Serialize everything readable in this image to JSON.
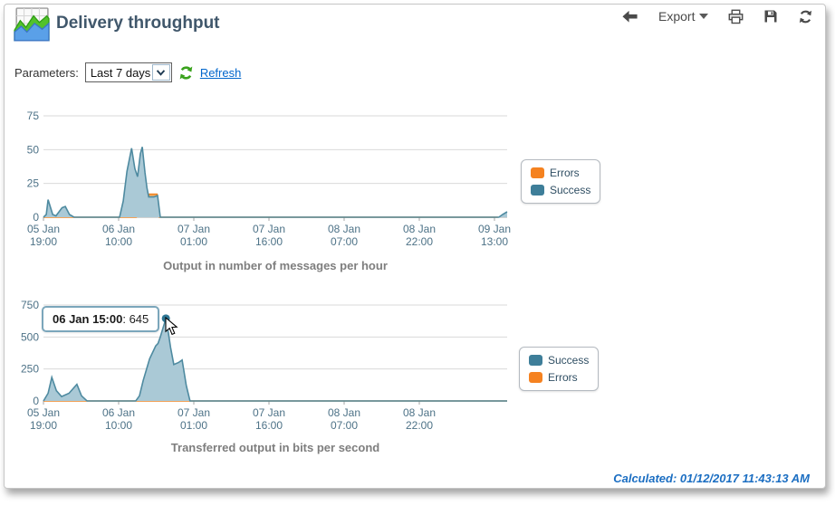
{
  "header": {
    "title": "Delivery throughput"
  },
  "toolbar": {
    "export_label": "Export"
  },
  "parameters": {
    "label": "Parameters:",
    "range_value": "Last 7 days",
    "refresh_label": "Refresh"
  },
  "tooltip": {
    "time": "06 Jan 15:00",
    "suffix": ": 645"
  },
  "footer": {
    "calculated": "Calculated: 01/12/2017 11:43:13 AM"
  },
  "colors": {
    "success": "#3e7e99",
    "success_stroke": "#4e8aa0",
    "success_fill": "#aac9d6",
    "errors": "#f58220",
    "errors_fill": "#f6b26b",
    "grid": "#d9d9d9",
    "axis": "#a6a6a6",
    "tick_text": "#4d7287",
    "marker": "#2e7693",
    "link": "#0066cc",
    "title_text": "#40576b",
    "footer_text": "#1b6ec2"
  },
  "chart_data": [
    {
      "type": "area",
      "title": "Output in number of messages per hour",
      "ylabel": "messages per hour",
      "ylim": [
        0,
        75
      ],
      "y_ticks": [
        0,
        25,
        50,
        75
      ],
      "x_ticks": [
        {
          "date": "05 Jan",
          "time": "19:00"
        },
        {
          "date": "06 Jan",
          "time": "10:00"
        },
        {
          "date": "07 Jan",
          "time": "01:00"
        },
        {
          "date": "07 Jan",
          "time": "16:00"
        },
        {
          "date": "08 Jan",
          "time": "07:00"
        },
        {
          "date": "08 Jan",
          "time": "22:00"
        },
        {
          "date": "09 Jan",
          "time": "13:00"
        }
      ],
      "legend": [
        {
          "label": "Errors",
          "color": "#f58220"
        },
        {
          "label": "Success",
          "color": "#3e7e99"
        }
      ],
      "series": [
        {
          "name": "Errors",
          "stroke": "#ef8320",
          "fill": "#f6b26b",
          "points": [
            [
              0.0,
              0
            ],
            [
              0.2,
              0
            ],
            [
              0.213,
              3
            ],
            [
              0.221,
              10
            ],
            [
              0.228,
              17
            ],
            [
              0.245,
              17
            ],
            [
              0.25,
              0
            ],
            [
              0.98,
              0
            ]
          ]
        },
        {
          "name": "Success",
          "stroke": "#4e8aa0",
          "fill": "#aac9d6",
          "points": [
            [
              0.0,
              0
            ],
            [
              0.006,
              2
            ],
            [
              0.01,
              13
            ],
            [
              0.02,
              2
            ],
            [
              0.027,
              1
            ],
            [
              0.04,
              7
            ],
            [
              0.047,
              8
            ],
            [
              0.056,
              2
            ],
            [
              0.066,
              0
            ],
            [
              0.164,
              0
            ],
            [
              0.172,
              12
            ],
            [
              0.18,
              34
            ],
            [
              0.19,
              51
            ],
            [
              0.197,
              36
            ],
            [
              0.203,
              30
            ],
            [
              0.209,
              47
            ],
            [
              0.213,
              52
            ],
            [
              0.219,
              33
            ],
            [
              0.223,
              22
            ],
            [
              0.227,
              15
            ],
            [
              0.238,
              15
            ],
            [
              0.246,
              16
            ],
            [
              0.252,
              0
            ],
            [
              0.982,
              0
            ],
            [
              0.99,
              2
            ],
            [
              1.0,
              4
            ]
          ]
        }
      ],
      "grid": true,
      "legend_position": "right"
    },
    {
      "type": "area",
      "title": "Transferred output in bits per second",
      "ylabel": "bits per second",
      "ylim": [
        0,
        750
      ],
      "y_ticks": [
        0,
        250,
        500,
        750
      ],
      "x_ticks": [
        {
          "date": "05 Jan",
          "time": "19:00"
        },
        {
          "date": "06 Jan",
          "time": "10:00"
        },
        {
          "date": "07 Jan",
          "time": "01:00"
        },
        {
          "date": "07 Jan",
          "time": "16:00"
        },
        {
          "date": "08 Jan",
          "time": "07:00"
        },
        {
          "date": "08 Jan",
          "time": "22:00"
        }
      ],
      "legend": [
        {
          "label": "Success",
          "color": "#3e7e99"
        },
        {
          "label": "Errors",
          "color": "#f58220"
        }
      ],
      "series": [
        {
          "name": "Errors",
          "stroke": "#ef8320",
          "fill": "#f6b26b",
          "points": [
            [
              0.0,
              0
            ],
            [
              1.0,
              0
            ]
          ]
        },
        {
          "name": "Success",
          "stroke": "#4e8aa0",
          "fill": "#aac9d6",
          "points": [
            [
              0.0,
              0
            ],
            [
              0.01,
              60
            ],
            [
              0.018,
              185
            ],
            [
              0.028,
              80
            ],
            [
              0.039,
              35
            ],
            [
              0.055,
              60
            ],
            [
              0.072,
              130
            ],
            [
              0.082,
              40
            ],
            [
              0.094,
              0
            ],
            [
              0.199,
              0
            ],
            [
              0.207,
              40
            ],
            [
              0.215,
              160
            ],
            [
              0.229,
              330
            ],
            [
              0.238,
              400
            ],
            [
              0.242,
              430
            ],
            [
              0.247,
              450
            ],
            [
              0.252,
              500
            ],
            [
              0.264,
              645
            ],
            [
              0.27,
              520
            ],
            [
              0.274,
              420
            ],
            [
              0.281,
              285
            ],
            [
              0.291,
              300
            ],
            [
              0.299,
              320
            ],
            [
              0.308,
              120
            ],
            [
              0.316,
              0
            ],
            [
              1.0,
              0
            ]
          ]
        }
      ],
      "marker": {
        "t": 0.264,
        "v": 645,
        "label": "06 Jan 15:00",
        "value": 645
      },
      "grid": true,
      "legend_position": "right"
    }
  ]
}
